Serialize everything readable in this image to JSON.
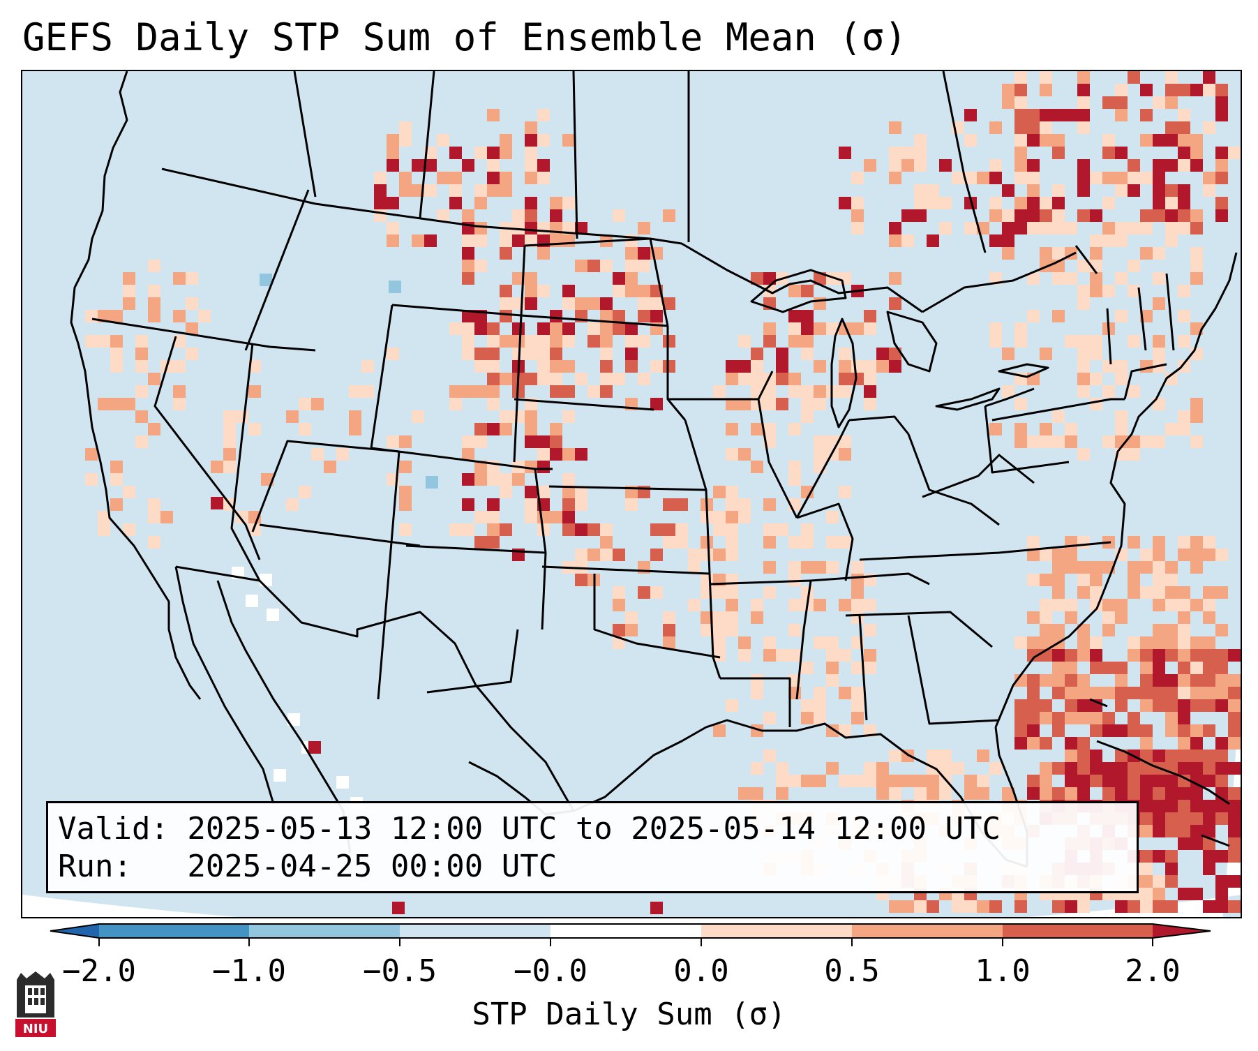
{
  "title": "GEFS Daily STP Sum of Ensemble Mean (σ)",
  "info": {
    "valid": "Valid: 2025-05-13 12:00 UTC to 2025-05-14 12:00 UTC",
    "run": "Run:   2025-04-25 00:00 UTC"
  },
  "colorbar": {
    "label": "STP Daily Sum (σ)",
    "ticks": [
      "−2.0",
      "−1.0",
      "−0.5",
      "−0.0",
      "0.0",
      "0.5",
      "1.0",
      "2.0"
    ],
    "bins": [
      {
        "range": "< -2.0",
        "color": "#2166ac"
      },
      {
        "range": "-2.0 to -1.0",
        "color": "#4393c3"
      },
      {
        "range": "-1.0 to -0.5",
        "color": "#92c5de"
      },
      {
        "range": "-0.5 to -0.0",
        "color": "#d1e5f0"
      },
      {
        "range": "-0.0 to 0.0",
        "color": "#ffffff"
      },
      {
        "range": "0.0 to 0.5",
        "color": "#fddbc7"
      },
      {
        "range": "0.5 to 1.0",
        "color": "#f4a582"
      },
      {
        "range": "1.0 to 2.0",
        "color": "#d6604d"
      },
      {
        "range": "> 2.0",
        "color": "#b2182b"
      }
    ]
  },
  "map": {
    "background_color": "#d1e5f0",
    "border_color": "#000000",
    "region": "Continental United States"
  },
  "logo": {
    "text": "NIU",
    "color": "#c8102e"
  }
}
